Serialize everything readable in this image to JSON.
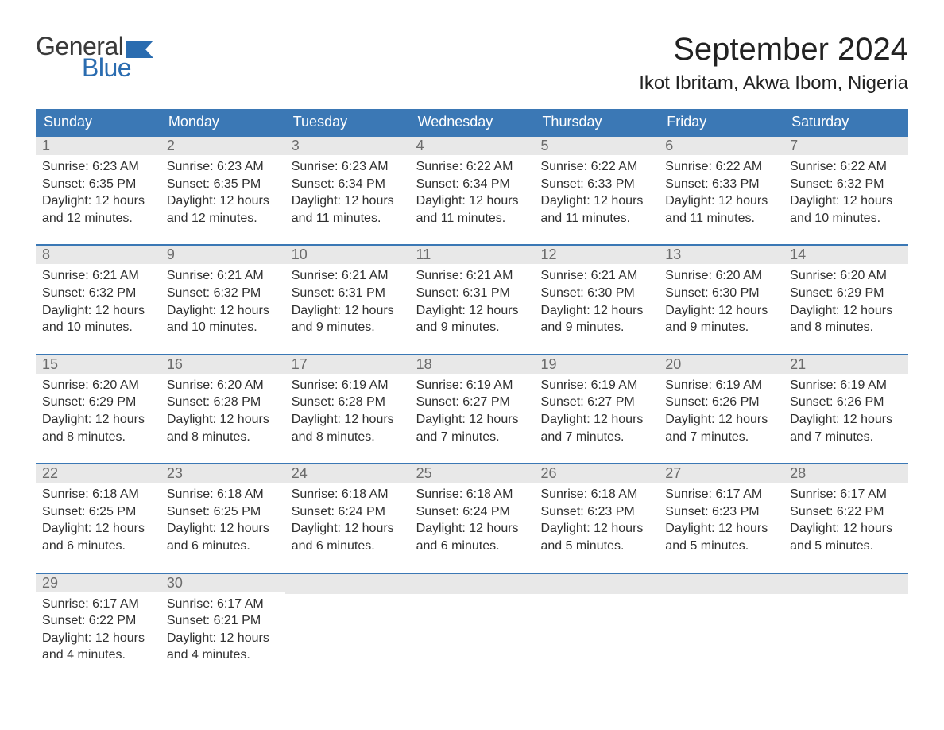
{
  "brand": {
    "general": "General",
    "blue": "Blue",
    "flag_color": "#2a6cb0"
  },
  "title": "September 2024",
  "location": "Ikot Ibritam, Akwa Ibom, Nigeria",
  "colors": {
    "header_bg": "#3b78b5",
    "header_text": "#ffffff",
    "daynum_bg": "#e8e8e8",
    "daynum_text": "#6b6b6b",
    "body_text": "#303030",
    "week_border": "#3b78b5",
    "page_bg": "#ffffff"
  },
  "typography": {
    "title_fontsize": 40,
    "location_fontsize": 24,
    "dow_fontsize": 18,
    "daynum_fontsize": 18,
    "body_fontsize": 16
  },
  "days_of_week": [
    "Sunday",
    "Monday",
    "Tuesday",
    "Wednesday",
    "Thursday",
    "Friday",
    "Saturday"
  ],
  "weeks": [
    [
      {
        "n": "1",
        "sunrise": "Sunrise: 6:23 AM",
        "sunset": "Sunset: 6:35 PM",
        "daylight": "Daylight: 12 hours and 12 minutes."
      },
      {
        "n": "2",
        "sunrise": "Sunrise: 6:23 AM",
        "sunset": "Sunset: 6:35 PM",
        "daylight": "Daylight: 12 hours and 12 minutes."
      },
      {
        "n": "3",
        "sunrise": "Sunrise: 6:23 AM",
        "sunset": "Sunset: 6:34 PM",
        "daylight": "Daylight: 12 hours and 11 minutes."
      },
      {
        "n": "4",
        "sunrise": "Sunrise: 6:22 AM",
        "sunset": "Sunset: 6:34 PM",
        "daylight": "Daylight: 12 hours and 11 minutes."
      },
      {
        "n": "5",
        "sunrise": "Sunrise: 6:22 AM",
        "sunset": "Sunset: 6:33 PM",
        "daylight": "Daylight: 12 hours and 11 minutes."
      },
      {
        "n": "6",
        "sunrise": "Sunrise: 6:22 AM",
        "sunset": "Sunset: 6:33 PM",
        "daylight": "Daylight: 12 hours and 11 minutes."
      },
      {
        "n": "7",
        "sunrise": "Sunrise: 6:22 AM",
        "sunset": "Sunset: 6:32 PM",
        "daylight": "Daylight: 12 hours and 10 minutes."
      }
    ],
    [
      {
        "n": "8",
        "sunrise": "Sunrise: 6:21 AM",
        "sunset": "Sunset: 6:32 PM",
        "daylight": "Daylight: 12 hours and 10 minutes."
      },
      {
        "n": "9",
        "sunrise": "Sunrise: 6:21 AM",
        "sunset": "Sunset: 6:32 PM",
        "daylight": "Daylight: 12 hours and 10 minutes."
      },
      {
        "n": "10",
        "sunrise": "Sunrise: 6:21 AM",
        "sunset": "Sunset: 6:31 PM",
        "daylight": "Daylight: 12 hours and 9 minutes."
      },
      {
        "n": "11",
        "sunrise": "Sunrise: 6:21 AM",
        "sunset": "Sunset: 6:31 PM",
        "daylight": "Daylight: 12 hours and 9 minutes."
      },
      {
        "n": "12",
        "sunrise": "Sunrise: 6:21 AM",
        "sunset": "Sunset: 6:30 PM",
        "daylight": "Daylight: 12 hours and 9 minutes."
      },
      {
        "n": "13",
        "sunrise": "Sunrise: 6:20 AM",
        "sunset": "Sunset: 6:30 PM",
        "daylight": "Daylight: 12 hours and 9 minutes."
      },
      {
        "n": "14",
        "sunrise": "Sunrise: 6:20 AM",
        "sunset": "Sunset: 6:29 PM",
        "daylight": "Daylight: 12 hours and 8 minutes."
      }
    ],
    [
      {
        "n": "15",
        "sunrise": "Sunrise: 6:20 AM",
        "sunset": "Sunset: 6:29 PM",
        "daylight": "Daylight: 12 hours and 8 minutes."
      },
      {
        "n": "16",
        "sunrise": "Sunrise: 6:20 AM",
        "sunset": "Sunset: 6:28 PM",
        "daylight": "Daylight: 12 hours and 8 minutes."
      },
      {
        "n": "17",
        "sunrise": "Sunrise: 6:19 AM",
        "sunset": "Sunset: 6:28 PM",
        "daylight": "Daylight: 12 hours and 8 minutes."
      },
      {
        "n": "18",
        "sunrise": "Sunrise: 6:19 AM",
        "sunset": "Sunset: 6:27 PM",
        "daylight": "Daylight: 12 hours and 7 minutes."
      },
      {
        "n": "19",
        "sunrise": "Sunrise: 6:19 AM",
        "sunset": "Sunset: 6:27 PM",
        "daylight": "Daylight: 12 hours and 7 minutes."
      },
      {
        "n": "20",
        "sunrise": "Sunrise: 6:19 AM",
        "sunset": "Sunset: 6:26 PM",
        "daylight": "Daylight: 12 hours and 7 minutes."
      },
      {
        "n": "21",
        "sunrise": "Sunrise: 6:19 AM",
        "sunset": "Sunset: 6:26 PM",
        "daylight": "Daylight: 12 hours and 7 minutes."
      }
    ],
    [
      {
        "n": "22",
        "sunrise": "Sunrise: 6:18 AM",
        "sunset": "Sunset: 6:25 PM",
        "daylight": "Daylight: 12 hours and 6 minutes."
      },
      {
        "n": "23",
        "sunrise": "Sunrise: 6:18 AM",
        "sunset": "Sunset: 6:25 PM",
        "daylight": "Daylight: 12 hours and 6 minutes."
      },
      {
        "n": "24",
        "sunrise": "Sunrise: 6:18 AM",
        "sunset": "Sunset: 6:24 PM",
        "daylight": "Daylight: 12 hours and 6 minutes."
      },
      {
        "n": "25",
        "sunrise": "Sunrise: 6:18 AM",
        "sunset": "Sunset: 6:24 PM",
        "daylight": "Daylight: 12 hours and 6 minutes."
      },
      {
        "n": "26",
        "sunrise": "Sunrise: 6:18 AM",
        "sunset": "Sunset: 6:23 PM",
        "daylight": "Daylight: 12 hours and 5 minutes."
      },
      {
        "n": "27",
        "sunrise": "Sunrise: 6:17 AM",
        "sunset": "Sunset: 6:23 PM",
        "daylight": "Daylight: 12 hours and 5 minutes."
      },
      {
        "n": "28",
        "sunrise": "Sunrise: 6:17 AM",
        "sunset": "Sunset: 6:22 PM",
        "daylight": "Daylight: 12 hours and 5 minutes."
      }
    ],
    [
      {
        "n": "29",
        "sunrise": "Sunrise: 6:17 AM",
        "sunset": "Sunset: 6:22 PM",
        "daylight": "Daylight: 12 hours and 4 minutes."
      },
      {
        "n": "30",
        "sunrise": "Sunrise: 6:17 AM",
        "sunset": "Sunset: 6:21 PM",
        "daylight": "Daylight: 12 hours and 4 minutes."
      },
      {
        "empty": true
      },
      {
        "empty": true
      },
      {
        "empty": true
      },
      {
        "empty": true
      },
      {
        "empty": true
      }
    ]
  ]
}
